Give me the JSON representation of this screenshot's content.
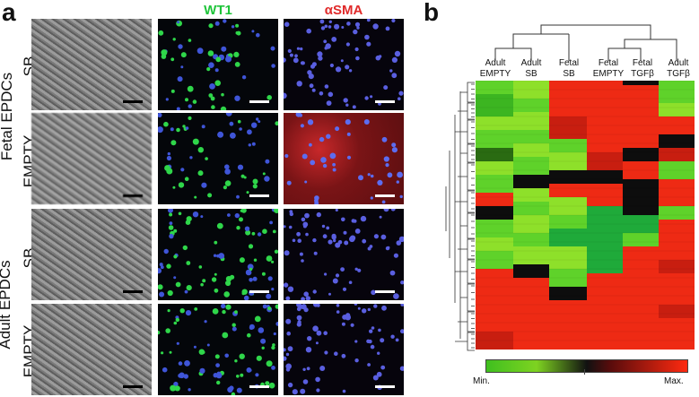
{
  "panel_a": {
    "letter": "a",
    "col_headers": [
      "WT1",
      "αSMA"
    ],
    "group_labels": [
      "Fetal EPDCs",
      "Adult EPDCs"
    ],
    "row_labels": [
      "SB",
      "EMPTY",
      "SB",
      "EMPTY"
    ],
    "colors": {
      "wt1": "#1fc43a",
      "asma": "#e02a2a"
    }
  },
  "panel_b": {
    "letter": "b",
    "columns": [
      {
        "line1": "Adult",
        "line2": "EMPTY"
      },
      {
        "line1": "Adult",
        "line2": "SB"
      },
      {
        "line1": "Fetal",
        "line2": "SB"
      },
      {
        "line1": "Fetal",
        "line2": "EMPTY"
      },
      {
        "line1": "Fetal",
        "line2": "TGFβ"
      },
      {
        "line1": "Adult",
        "line2": "TGFβ"
      }
    ],
    "legend": {
      "min": "Min.",
      "max": "Max."
    }
  }
}
